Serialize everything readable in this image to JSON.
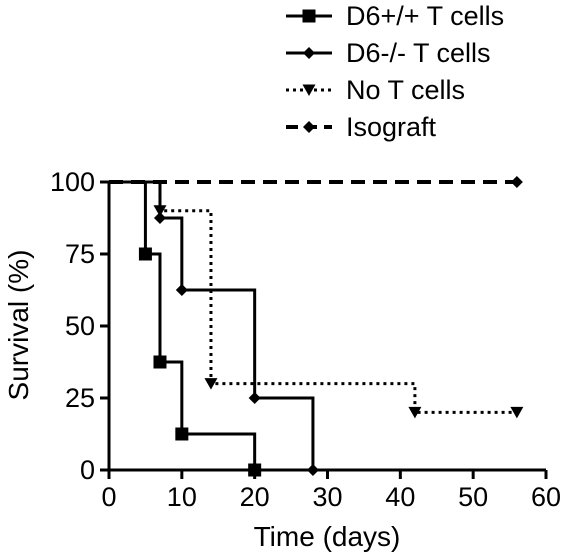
{
  "chart_data": {
    "type": "line",
    "subtype": "kaplan-meier step curves",
    "title": "",
    "xlabel": "Time (days)",
    "ylabel": "Survival (%)",
    "xlim": [
      0,
      60
    ],
    "ylim": [
      0,
      100
    ],
    "xticks": [
      "0",
      "10",
      "20",
      "30",
      "40",
      "50",
      "60"
    ],
    "yticks": [
      "0",
      "25",
      "50",
      "75",
      "100"
    ],
    "grid": false,
    "legend_position": "top",
    "series": [
      {
        "name": "D6+/+ T cells",
        "line_style": "solid",
        "marker": "square",
        "color": "#000000",
        "steps": [
          [
            0,
            100
          ],
          [
            5,
            100
          ],
          [
            5,
            75
          ],
          [
            7,
            75
          ],
          [
            7,
            37.5
          ],
          [
            10,
            37.5
          ],
          [
            10,
            12.5
          ],
          [
            20,
            12.5
          ],
          [
            20,
            0
          ]
        ],
        "markers": [
          [
            5,
            75
          ],
          [
            7,
            37.5
          ],
          [
            10,
            12.5
          ],
          [
            20,
            0
          ]
        ]
      },
      {
        "name": "D6-/- T cells",
        "line_style": "solid",
        "marker": "diamond",
        "color": "#000000",
        "steps": [
          [
            0,
            100
          ],
          [
            7,
            100
          ],
          [
            7,
            87.5
          ],
          [
            10,
            87.5
          ],
          [
            10,
            62.5
          ],
          [
            20,
            62.5
          ],
          [
            20,
            25
          ],
          [
            28,
            25
          ],
          [
            28,
            0
          ]
        ],
        "markers": [
          [
            7,
            87.5
          ],
          [
            10,
            62.5
          ],
          [
            20,
            25
          ],
          [
            28,
            0
          ]
        ]
      },
      {
        "name": "No T cells",
        "line_style": "dotted",
        "marker": "triangle-down",
        "color": "#000000",
        "steps": [
          [
            0,
            100
          ],
          [
            7,
            100
          ],
          [
            7,
            90
          ],
          [
            14,
            90
          ],
          [
            14,
            30
          ],
          [
            42,
            30
          ],
          [
            42,
            20
          ],
          [
            56,
            20
          ]
        ],
        "markers": [
          [
            7,
            90
          ],
          [
            14,
            30
          ],
          [
            42,
            20
          ],
          [
            56,
            20
          ]
        ]
      },
      {
        "name": "Isograft",
        "line_style": "dashed",
        "marker": "diamond",
        "color": "#000000",
        "steps": [
          [
            0,
            100
          ],
          [
            56,
            100
          ]
        ],
        "markers": [
          [
            56,
            100
          ]
        ]
      }
    ]
  }
}
